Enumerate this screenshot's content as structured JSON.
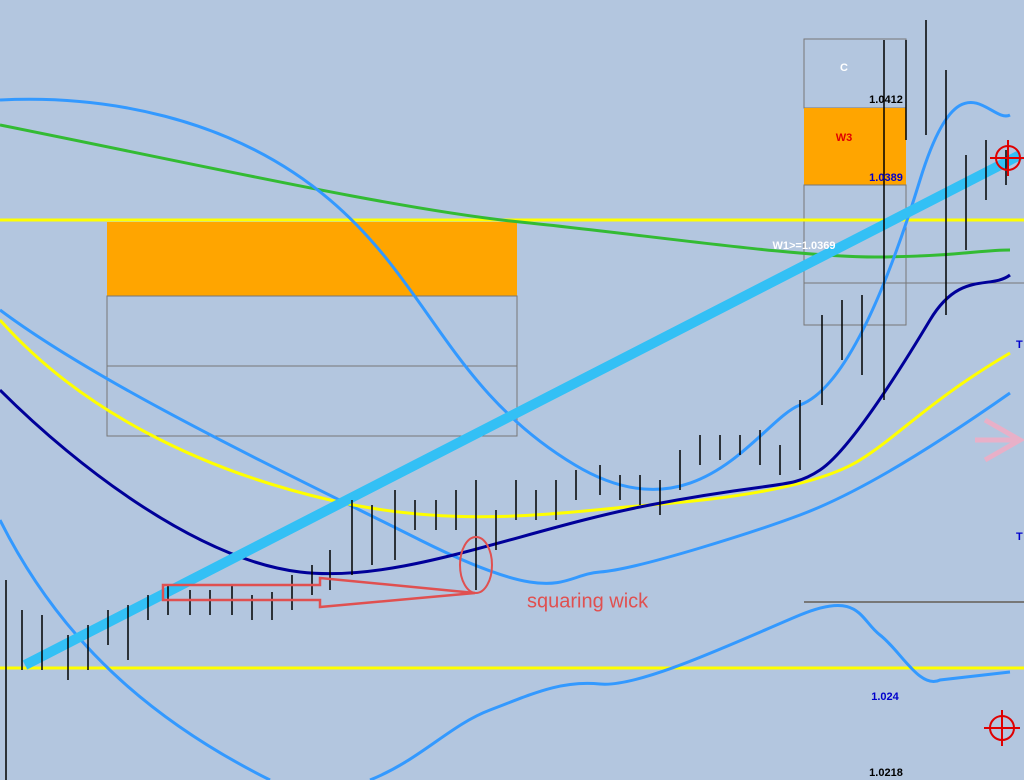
{
  "annotations": {
    "box_c": "C",
    "box_w3": "W3",
    "level_high": "1.0412",
    "level_w3": "1.0389",
    "level_w1": "W1>=1.0369",
    "marker_t1": "T",
    "marker_t2": "T",
    "note": "squaring wick",
    "level_low1": "1.024",
    "level_low2": "1.0218"
  }
}
